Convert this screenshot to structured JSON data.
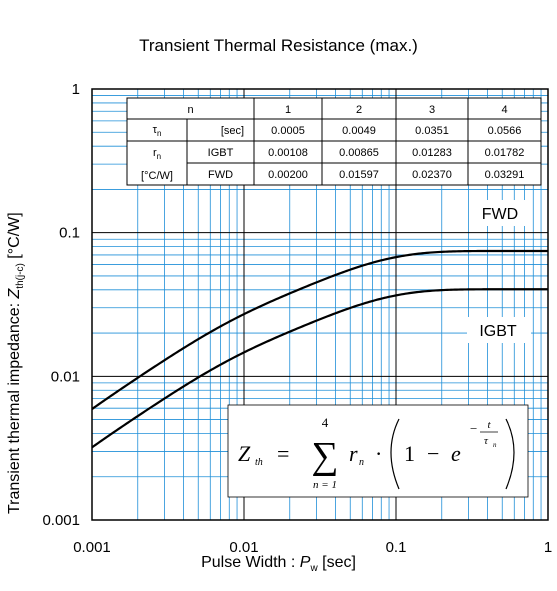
{
  "chart_data": {
    "type": "line",
    "title": "Transient Thermal Resistance (max.)",
    "xlabel": {
      "prefix": "Pulse Width : ",
      "var": "P",
      "sub": "w",
      "suffix": " [sec]"
    },
    "ylabel": {
      "prefix": "Transient thermal impedance: ",
      "var": "Z",
      "sub": "th(j-c)",
      "suffix": " [°C/W]"
    },
    "x_scale": "log",
    "y_scale": "log",
    "xlim": [
      0.001,
      1
    ],
    "ylim": [
      0.001,
      1
    ],
    "x_ticks": [
      {
        "value": 0.001,
        "label": "0.001"
      },
      {
        "value": 0.01,
        "label": "0.01"
      },
      {
        "value": 0.1,
        "label": "0.1"
      },
      {
        "value": 1,
        "label": "1"
      }
    ],
    "y_ticks": [
      {
        "value": 0.001,
        "label": "0.001"
      },
      {
        "value": 0.01,
        "label": "0.01"
      },
      {
        "value": 0.1,
        "label": "0.1"
      },
      {
        "value": 1,
        "label": "1"
      }
    ],
    "grid": true,
    "series": [
      {
        "name": "FWD",
        "tau": [
          0.0005,
          0.0049,
          0.0351,
          0.0566
        ],
        "r": [
          0.002,
          0.01597,
          0.0237,
          0.03291
        ]
      },
      {
        "name": "IGBT",
        "tau": [
          0.0005,
          0.0049,
          0.0351,
          0.0566
        ],
        "r": [
          0.00108,
          0.00865,
          0.01283,
          0.01782
        ]
      }
    ],
    "parameter_table": {
      "header": [
        "n",
        "",
        "1",
        "2",
        "3",
        "4"
      ],
      "tau_row": {
        "sym": "τ",
        "sub": "n",
        "unit": "[sec]",
        "values": [
          "0.0005",
          "0.0049",
          "0.0351",
          "0.0566"
        ]
      },
      "r_label": {
        "sym": "r",
        "sub": "n",
        "unit": "[°C/W]"
      },
      "r_rows": [
        {
          "name": "IGBT",
          "values": [
            "0.00108",
            "0.00865",
            "0.01283",
            "0.01782"
          ]
        },
        {
          "name": "FWD",
          "values": [
            "0.00200",
            "0.01597",
            "0.02370",
            "0.03291"
          ]
        }
      ]
    },
    "equation": {
      "lhs": "Z",
      "lhs_sub": "th",
      "eq": "=",
      "sum": "∑",
      "upper": "4",
      "lower": "n = 1",
      "term": "r",
      "term_sub": "n",
      "dot": "·",
      "one": "1",
      "minus": "−",
      "e": "e",
      "exp_num": "t",
      "exp_den": "τ",
      "exp_den_sub": "n"
    }
  }
}
